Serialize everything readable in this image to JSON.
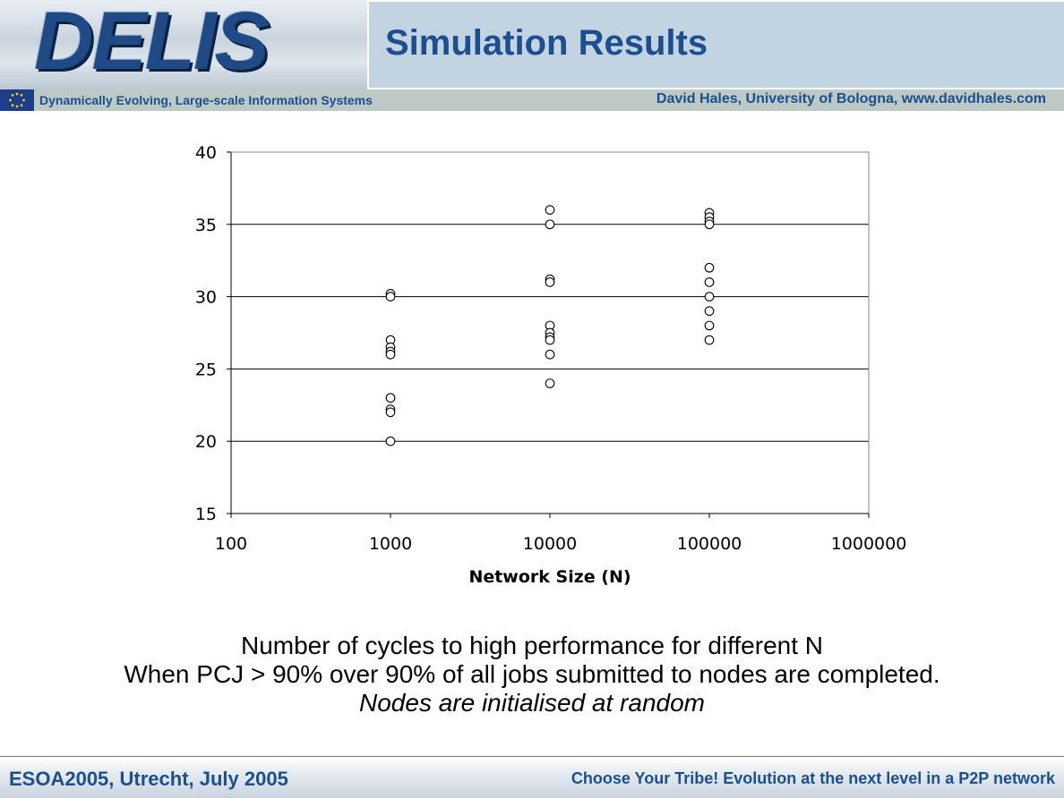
{
  "header": {
    "logo": "DELIS",
    "title": "Simulation Results",
    "tagline": "Dynamically Evolving, Large-scale Information Systems",
    "author": "David Hales, University of Bologna, www.davidhales.com"
  },
  "chart_data": {
    "type": "scatter",
    "title": "",
    "xlabel": "Network Size (N)",
    "ylabel": "",
    "x_scale": "log",
    "xlim": [
      100,
      1000000
    ],
    "ylim": [
      15,
      40
    ],
    "x_ticks": [
      "100",
      "1000",
      "10000",
      "100000",
      "1000000"
    ],
    "y_ticks": [
      "40",
      "35",
      "30",
      "25",
      "20",
      "15"
    ],
    "grid": "horizontal",
    "legend": "none",
    "marker": "open-circle",
    "series": [
      {
        "points": [
          [
            1000,
            30.2
          ],
          [
            1000,
            30.0
          ],
          [
            1000,
            27.0
          ],
          [
            1000,
            26.5
          ],
          [
            1000,
            26.2
          ],
          [
            1000,
            26.0
          ],
          [
            1000,
            23.0
          ],
          [
            1000,
            22.2
          ],
          [
            1000,
            22.0
          ],
          [
            1000,
            20.0
          ],
          [
            10000,
            36.0
          ],
          [
            10000,
            35.0
          ],
          [
            10000,
            31.2
          ],
          [
            10000,
            31.0
          ],
          [
            10000,
            28.0
          ],
          [
            10000,
            27.5
          ],
          [
            10000,
            27.2
          ],
          [
            10000,
            27.0
          ],
          [
            10000,
            26.0
          ],
          [
            10000,
            24.0
          ],
          [
            100000,
            35.8
          ],
          [
            100000,
            35.5
          ],
          [
            100000,
            35.2
          ],
          [
            100000,
            35.0
          ],
          [
            100000,
            32.0
          ],
          [
            100000,
            31.0
          ],
          [
            100000,
            30.0
          ],
          [
            100000,
            29.0
          ],
          [
            100000,
            28.0
          ],
          [
            100000,
            27.0
          ]
        ]
      }
    ]
  },
  "caption": {
    "line1": "Number of cycles to high performance for different N",
    "line2": "When PCJ > 90% over 90% of all jobs submitted to nodes are completed.",
    "line3": "Nodes are initialised at random"
  },
  "footer": {
    "left": "ESOA2005, Utrecht, July 2005",
    "right": "Choose Your Tribe! Evolution at the next level in a P2P network"
  },
  "colors": {
    "accent": "#1c4f8f",
    "title_bar": "#c3d3e2",
    "subtitle_bar": "#bcc9c4"
  }
}
